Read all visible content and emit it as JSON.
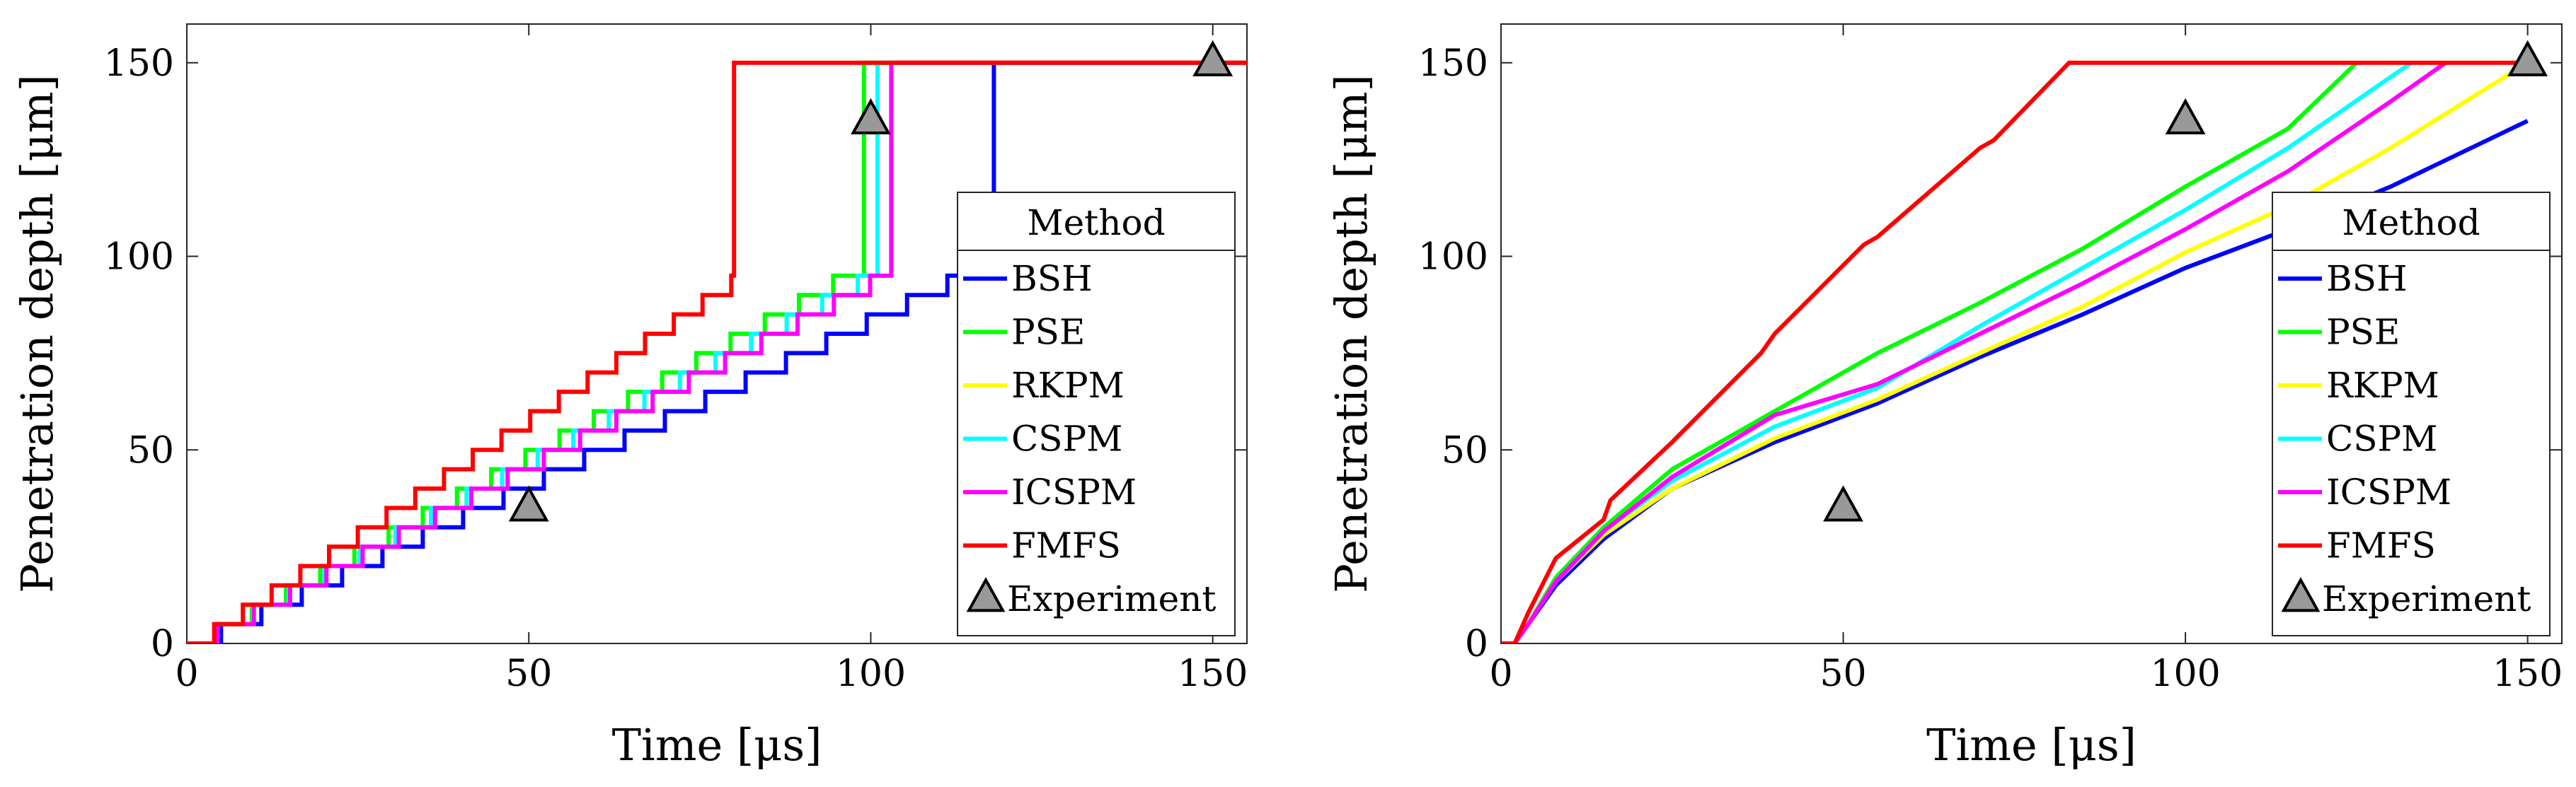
{
  "chart_data": [
    {
      "type": "line",
      "panel": "left",
      "xlabel": "Time [μs]",
      "ylabel": "Penetration depth [μm]",
      "xlim": [
        0,
        155
      ],
      "ylim": [
        0,
        160
      ],
      "xticks": [
        0,
        50,
        100,
        150
      ],
      "yticks": [
        0,
        50,
        100,
        150
      ],
      "legend": {
        "title": "Method",
        "position": "lower-right"
      },
      "series": [
        {
          "name": "BSH",
          "color": "#0000ff",
          "kind": "staircase",
          "start": 5,
          "end": 118,
          "final": 150,
          "stepTime": 5.9,
          "stepDepth": 5
        },
        {
          "name": "PSE",
          "color": "#00ff00",
          "kind": "staircase",
          "start": 4.5,
          "end": 99,
          "final": 150,
          "stepTime": 5.0,
          "stepDepth": 5
        },
        {
          "name": "RKPM",
          "color": "#ffff00",
          "kind": "staircase",
          "start": 4.5,
          "end": 101,
          "final": 150,
          "stepTime": 5.2,
          "stepDepth": 5
        },
        {
          "name": "CSPM",
          "color": "#00ffff",
          "kind": "staircase",
          "start": 4.5,
          "end": 101,
          "final": 150,
          "stepTime": 5.2,
          "stepDepth": 5
        },
        {
          "name": "ICSPM",
          "color": "#ff00ff",
          "kind": "staircase",
          "start": 4.5,
          "end": 103,
          "final": 150,
          "stepTime": 5.3,
          "stepDepth": 5
        },
        {
          "name": "FMFS",
          "color": "#ff0000",
          "kind": "staircase",
          "start": 4,
          "end": 80,
          "final": 150,
          "stepTime": 4.2,
          "stepDepth": 5
        }
      ],
      "experiment": {
        "name": "Experiment",
        "color": "#999999",
        "x": [
          50,
          100,
          150
        ],
        "y": [
          35,
          135,
          150
        ]
      }
    },
    {
      "type": "line",
      "panel": "right",
      "xlabel": "Time [μs]",
      "ylabel": "Penetration depth [μm]",
      "xlim": [
        0,
        155
      ],
      "ylim": [
        0,
        160
      ],
      "xticks": [
        0,
        50,
        100,
        150
      ],
      "yticks": [
        0,
        50,
        100,
        150
      ],
      "legend": {
        "title": "Method",
        "position": "lower-right"
      },
      "series": [
        {
          "name": "BSH",
          "color": "#0000ff",
          "kind": "curve",
          "x": [
            0,
            2,
            4,
            8,
            15,
            25,
            40,
            55,
            70,
            85,
            100,
            115,
            130,
            150
          ],
          "y": [
            0,
            0,
            5,
            15,
            27,
            40,
            52,
            62,
            74,
            85,
            97,
            107,
            118,
            135
          ]
        },
        {
          "name": "PSE",
          "color": "#00ff00",
          "kind": "curve",
          "x": [
            0,
            2,
            4,
            8,
            15,
            25,
            40,
            55,
            70,
            85,
            100,
            115,
            125
          ],
          "y": [
            0,
            0,
            5,
            17,
            30,
            45,
            60,
            75,
            88,
            102,
            118,
            133,
            150
          ]
        },
        {
          "name": "RKPM",
          "color": "#ffff00",
          "kind": "curve",
          "x": [
            0,
            2,
            4,
            8,
            15,
            25,
            40,
            55,
            70,
            85,
            100,
            115,
            130,
            150
          ],
          "y": [
            0,
            0,
            5,
            16,
            28,
            40,
            53,
            63,
            75,
            87,
            101,
            113,
            128,
            150
          ]
        },
        {
          "name": "CSPM",
          "color": "#00ffff",
          "kind": "curve",
          "x": [
            0,
            2,
            4,
            8,
            15,
            25,
            40,
            55,
            70,
            85,
            100,
            115,
            133
          ],
          "y": [
            0,
            0,
            5,
            16,
            29,
            42,
            56,
            66,
            82,
            97,
            112,
            128,
            150
          ]
        },
        {
          "name": "ICSPM",
          "color": "#ff00ff",
          "kind": "curve",
          "x": [
            0,
            2,
            4,
            8,
            15,
            25,
            40,
            55,
            70,
            85,
            100,
            115,
            130,
            138
          ],
          "y": [
            0,
            0,
            5,
            16,
            29,
            43,
            59,
            67,
            80,
            93,
            107,
            122,
            140,
            150
          ]
        },
        {
          "name": "FMFS",
          "color": "#ff0000",
          "kind": "curve",
          "x": [
            0,
            2,
            4,
            8,
            15,
            16,
            25,
            38,
            40,
            53,
            55,
            70,
            72,
            83,
            150
          ],
          "y": [
            0,
            0,
            8,
            22,
            32,
            37,
            52,
            75,
            80,
            103,
            105,
            128,
            130,
            150,
            150
          ]
        }
      ],
      "experiment": {
        "name": "Experiment",
        "color": "#999999",
        "x": [
          50,
          100,
          150
        ],
        "y": [
          35,
          135,
          150
        ]
      }
    }
  ]
}
